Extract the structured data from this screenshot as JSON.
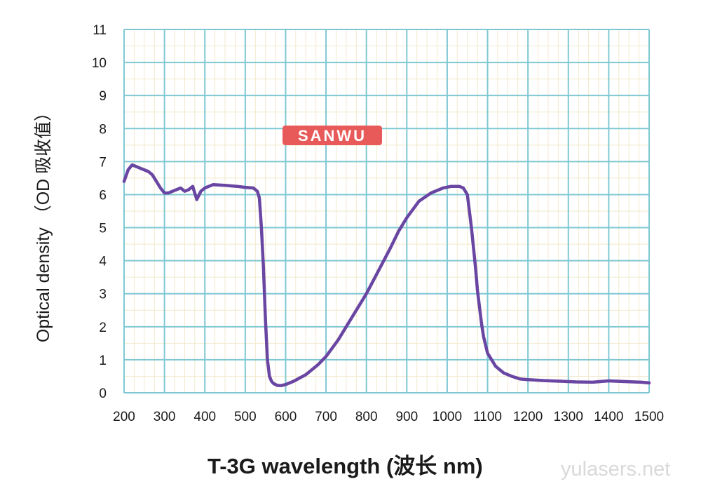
{
  "chart_data": {
    "type": "line",
    "xlabel": "T-3G wavelength  (波长  nm)",
    "ylabel": "Optical density （OD 吸收值）",
    "xlim": [
      200,
      1500
    ],
    "ylim": [
      0,
      11
    ],
    "x_ticks": [
      "200",
      "300",
      "400",
      "500",
      "600",
      "700",
      "800",
      "900",
      "1000",
      "1100",
      "1200",
      "1300",
      "1400",
      "1500"
    ],
    "y_ticks": [
      "0",
      "1",
      "2",
      "3",
      "4",
      "5",
      "6",
      "7",
      "8",
      "9",
      "10",
      "11"
    ],
    "grid": true,
    "minor_grid": true,
    "series": [
      {
        "color": "#6a46a3",
        "x": [
          200,
          210,
          220,
          230,
          240,
          250,
          260,
          270,
          280,
          290,
          300,
          310,
          320,
          330,
          340,
          350,
          360,
          370,
          380,
          390,
          400,
          420,
          450,
          480,
          500,
          520,
          530,
          535,
          540,
          545,
          550,
          555,
          560,
          565,
          570,
          575,
          580,
          590,
          600,
          620,
          650,
          680,
          700,
          730,
          760,
          800,
          830,
          860,
          880,
          900,
          930,
          960,
          990,
          1010,
          1030,
          1040,
          1050,
          1055,
          1060,
          1065,
          1070,
          1075,
          1080,
          1085,
          1090,
          1100,
          1120,
          1140,
          1160,
          1180,
          1200,
          1240,
          1280,
          1320,
          1360,
          1400,
          1440,
          1480,
          1500
        ],
        "y": [
          6.4,
          6.75,
          6.9,
          6.85,
          6.8,
          6.75,
          6.7,
          6.6,
          6.4,
          6.2,
          6.05,
          6.05,
          6.1,
          6.15,
          6.2,
          6.1,
          6.15,
          6.25,
          5.85,
          6.1,
          6.2,
          6.3,
          6.28,
          6.25,
          6.22,
          6.2,
          6.1,
          5.9,
          5.0,
          3.8,
          2.2,
          1.0,
          0.5,
          0.35,
          0.28,
          0.25,
          0.22,
          0.22,
          0.25,
          0.35,
          0.55,
          0.85,
          1.1,
          1.6,
          2.2,
          3.0,
          3.7,
          4.4,
          4.9,
          5.3,
          5.8,
          6.05,
          6.2,
          6.25,
          6.25,
          6.2,
          6.0,
          5.5,
          5.0,
          4.4,
          3.8,
          3.1,
          2.6,
          2.1,
          1.7,
          1.2,
          0.8,
          0.6,
          0.5,
          0.42,
          0.4,
          0.37,
          0.35,
          0.33,
          0.32,
          0.36,
          0.34,
          0.32,
          0.3
        ]
      }
    ]
  },
  "logo": {
    "text": "SANWU",
    "color": "#e85a5a"
  },
  "watermark": "yulasers.net"
}
